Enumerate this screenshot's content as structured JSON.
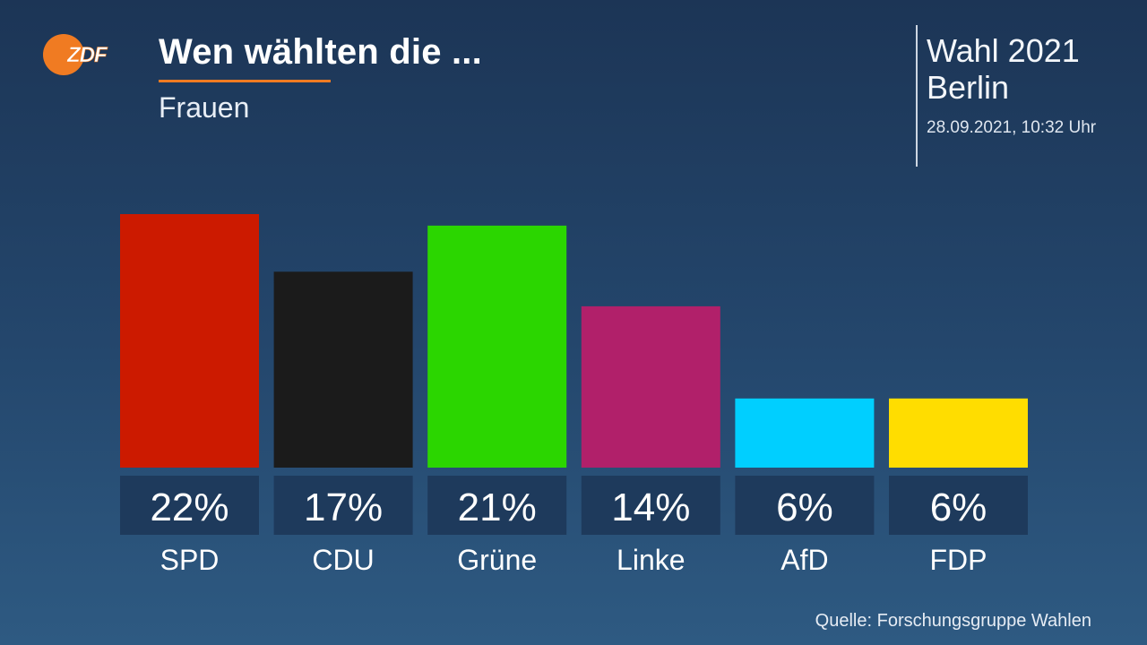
{
  "header": {
    "title": "Wen wählten die ...",
    "subtitle": "Frauen",
    "logo_text": "ZDF"
  },
  "meta": {
    "line1": "Wahl 2021",
    "line2": "Berlin",
    "date": "28.09.2021, 10:32 Uhr"
  },
  "footer": {
    "source": "Quelle: Forschungsgruppe Wahlen"
  },
  "colors": {
    "accent": "#f07b22",
    "label_box": "#1e3a5c"
  },
  "chart_data": {
    "type": "bar",
    "title": "Wen wählten die ...",
    "subtitle": "Frauen",
    "categories": [
      "SPD",
      "CDU",
      "Grüne",
      "Linke",
      "AfD",
      "FDP"
    ],
    "values": [
      22,
      17,
      21,
      14,
      6,
      6
    ],
    "value_labels": [
      "22%",
      "17%",
      "21%",
      "14%",
      "6%",
      "6%"
    ],
    "colors": [
      "#cc1a00",
      "#1b1b1b",
      "#2bd600",
      "#b1206a",
      "#00cfff",
      "#ffdd00"
    ],
    "unit": "%",
    "ylim": [
      0,
      22
    ],
    "grid": false,
    "legend": "none"
  }
}
